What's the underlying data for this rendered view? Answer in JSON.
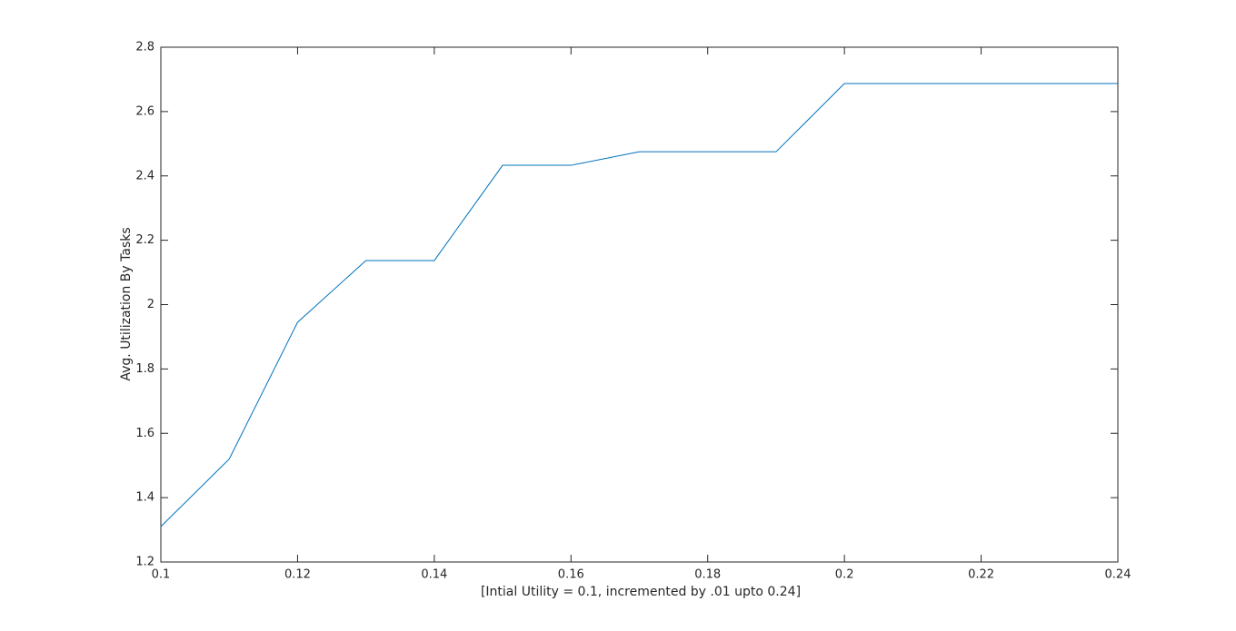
{
  "chart_data": {
    "type": "line",
    "xlabel": "[Intial Utility = 0.1, incremented by .01 upto 0.24]",
    "ylabel": "Avg. Utilization By Tasks",
    "x": [
      0.1,
      0.11,
      0.12,
      0.13,
      0.14,
      0.15,
      0.16,
      0.17,
      0.18,
      0.19,
      0.2,
      0.21,
      0.22,
      0.23,
      0.24
    ],
    "series": [
      {
        "color": "#0072bd",
        "values": [
          1.31,
          1.52,
          1.945,
          2.137,
          2.137,
          2.433,
          2.433,
          2.475,
          2.475,
          2.475,
          2.687,
          2.687,
          2.687,
          2.687,
          2.687
        ]
      }
    ],
    "xlim": [
      0.1,
      0.24
    ],
    "xticks": [
      0.1,
      0.12,
      0.14,
      0.16,
      0.18,
      0.2,
      0.22,
      0.24
    ],
    "ylim": [
      1.2,
      2.8
    ],
    "yticks": [
      1.2,
      1.4,
      1.6,
      1.8,
      2,
      2.2,
      2.4,
      2.6,
      2.8
    ],
    "grid": false
  }
}
